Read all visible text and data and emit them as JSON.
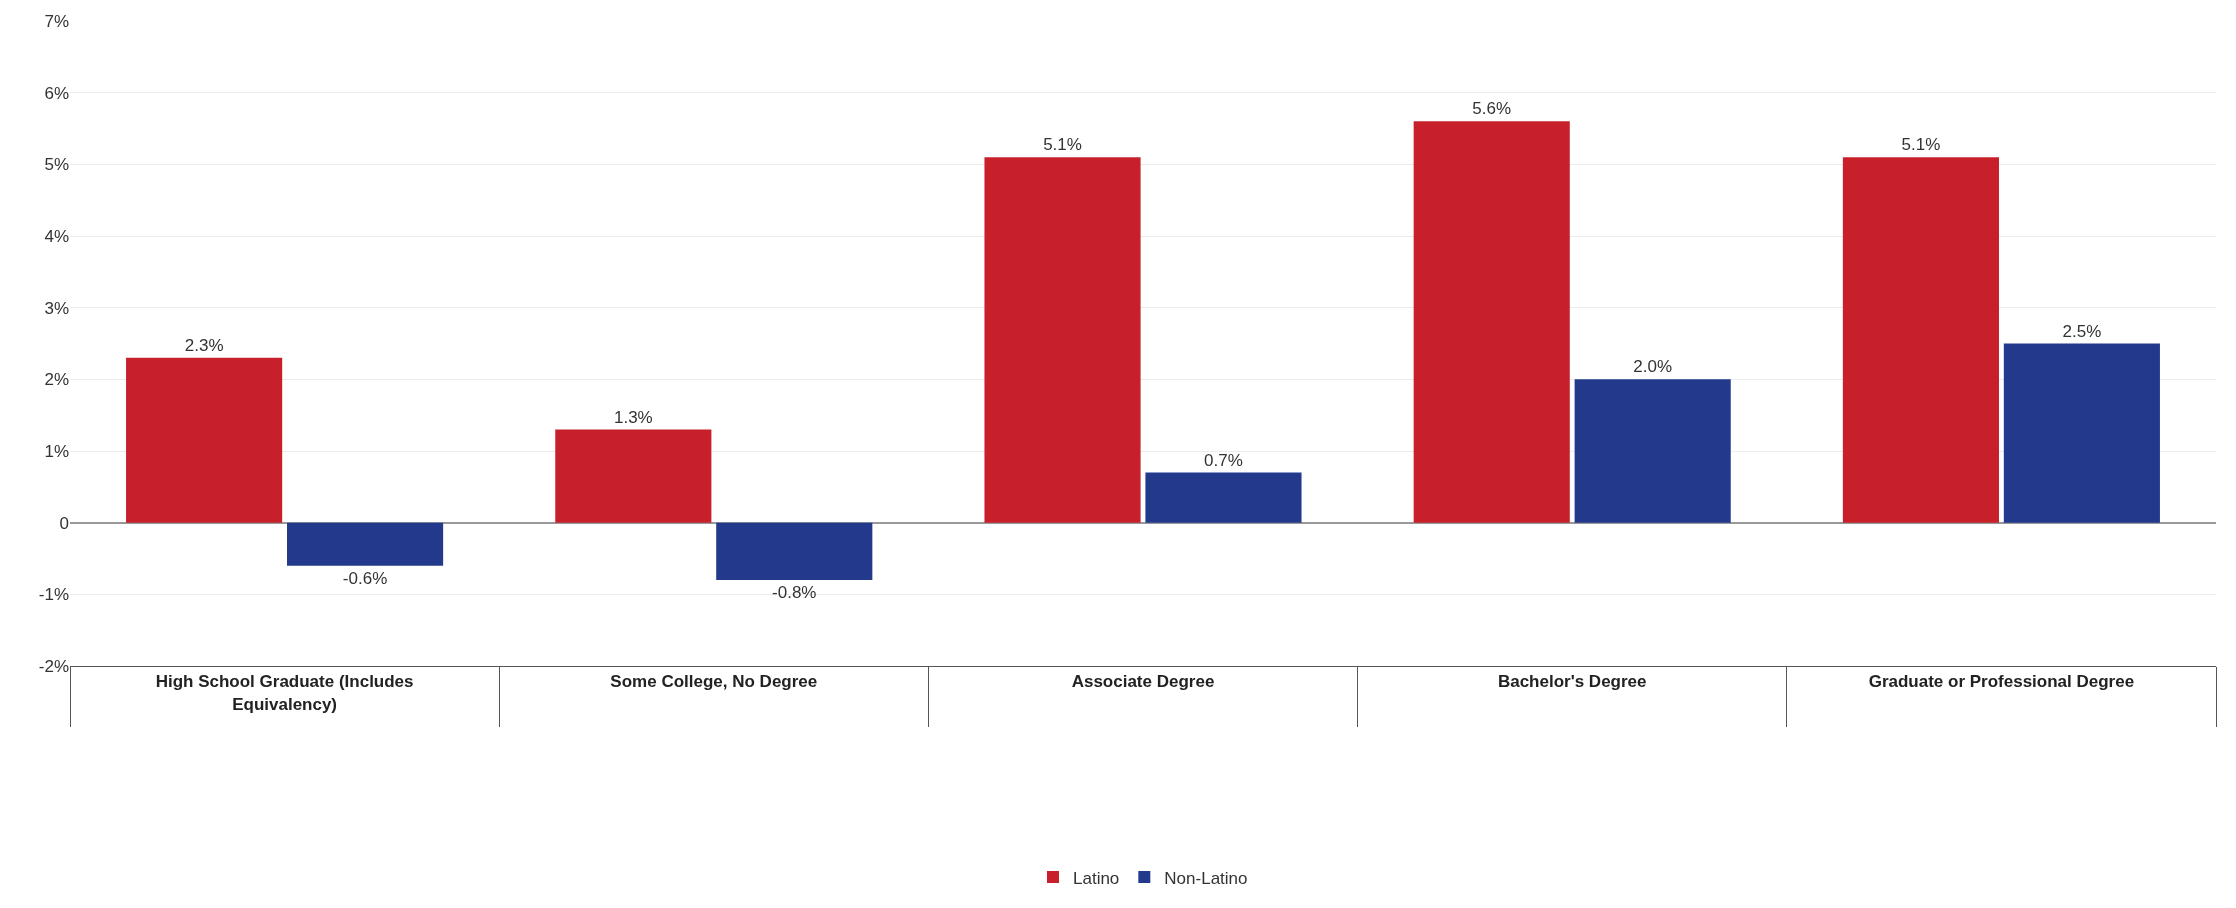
{
  "chart_data": {
    "type": "bar",
    "categories": [
      "High School Graduate (Includes Equivalency)",
      "Some College, No Degree",
      "Associate Degree",
      "Bachelor's Degree",
      "Graduate or Professional Degree"
    ],
    "series": [
      {
        "name": "Latino",
        "color": "#c8202a",
        "values": [
          2.3,
          1.3,
          5.1,
          5.6,
          5.1
        ],
        "value_labels": [
          "2.3%",
          "1.3%",
          "5.1%",
          "5.6%",
          "5.1%"
        ]
      },
      {
        "name": "Non-Latino",
        "color": "#233a8c",
        "values": [
          -0.6,
          -0.8,
          0.7,
          2.0,
          2.5
        ],
        "value_labels": [
          "-0.6%",
          "-0.8%",
          "0.7%",
          "2.0%",
          "2.5%"
        ]
      }
    ],
    "ylim": [
      -2,
      7
    ],
    "yticks": [
      {
        "value": -2,
        "label": "-2%"
      },
      {
        "value": -1,
        "label": "-1%"
      },
      0,
      {
        "value": 1,
        "label": "1%"
      },
      {
        "value": 2,
        "label": "2%"
      },
      {
        "value": 3,
        "label": "3%"
      },
      {
        "value": 4,
        "label": "4%"
      },
      {
        "value": 5,
        "label": "5%"
      },
      {
        "value": 6,
        "label": "6%"
      },
      {
        "value": 7,
        "label": "7%"
      }
    ],
    "grid": "y",
    "legend": "bottom"
  }
}
